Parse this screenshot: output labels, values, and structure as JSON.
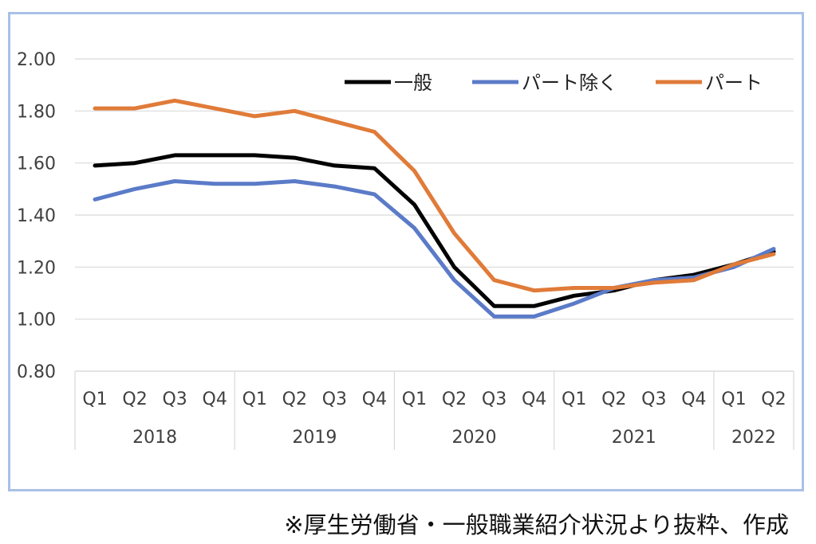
{
  "chart_data": {
    "type": "line",
    "title": "",
    "xlabel": "",
    "ylabel": "",
    "ylim": [
      0.8,
      2.0
    ],
    "yticks": [
      "2.00",
      "1.80",
      "1.60",
      "1.40",
      "1.20",
      "1.00",
      "0.80"
    ],
    "grid": true,
    "legend_position": "top-right",
    "categories": [
      "Q1",
      "Q2",
      "Q3",
      "Q4",
      "Q1",
      "Q2",
      "Q3",
      "Q4",
      "Q1",
      "Q2",
      "Q3",
      "Q4",
      "Q1",
      "Q2",
      "Q3",
      "Q4",
      "Q1",
      "Q2"
    ],
    "years": [
      {
        "label": "2018",
        "count": 4
      },
      {
        "label": "2019",
        "count": 4
      },
      {
        "label": "2020",
        "count": 4
      },
      {
        "label": "2021",
        "count": 4
      },
      {
        "label": "2022",
        "count": 2
      }
    ],
    "series": [
      {
        "name": "一般",
        "color": "#000000",
        "values": [
          1.59,
          1.6,
          1.63,
          1.63,
          1.63,
          1.62,
          1.59,
          1.58,
          1.44,
          1.2,
          1.05,
          1.05,
          1.09,
          1.11,
          1.15,
          1.17,
          1.21,
          1.26
        ]
      },
      {
        "name": "パート除く",
        "color": "#5b7bc8",
        "values": [
          1.46,
          1.5,
          1.53,
          1.52,
          1.52,
          1.53,
          1.51,
          1.48,
          1.35,
          1.15,
          1.01,
          1.01,
          1.06,
          1.12,
          1.15,
          1.16,
          1.2,
          1.27
        ]
      },
      {
        "name": "パート",
        "color": "#e07b39",
        "values": [
          1.81,
          1.81,
          1.84,
          1.81,
          1.78,
          1.8,
          1.76,
          1.72,
          1.57,
          1.33,
          1.15,
          1.11,
          1.12,
          1.12,
          1.14,
          1.15,
          1.21,
          1.25
        ]
      }
    ]
  },
  "source_note": "※厚生労働省・一般職業紹介状況より抜粋、作成"
}
